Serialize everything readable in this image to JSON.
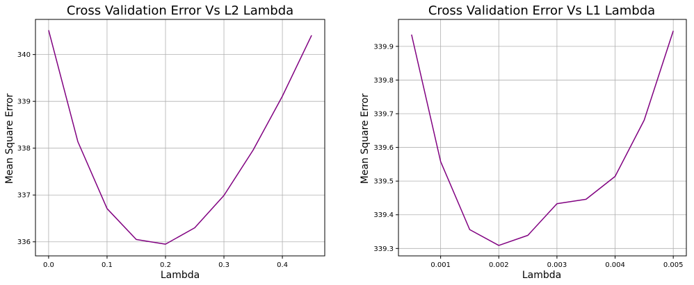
{
  "chart_data": [
    {
      "type": "line",
      "title": "Cross Validation Error Vs L2 Lambda",
      "xlabel": "Lambda",
      "ylabel": "Mean Square Error",
      "grid": true,
      "xlim": [
        -0.0225,
        0.4725
      ],
      "ylim": [
        335.7,
        340.75
      ],
      "xticks": [
        0.0,
        0.1,
        0.2,
        0.3,
        0.4
      ],
      "xtick_labels": [
        "0.0",
        "0.1",
        "0.2",
        "0.3",
        "0.4"
      ],
      "yticks": [
        336,
        337,
        338,
        339,
        340
      ],
      "ytick_labels": [
        "336",
        "337",
        "338",
        "339",
        "340"
      ],
      "color": "#800080",
      "series": [
        {
          "x": [
            0.0,
            0.05,
            0.1,
            0.15,
            0.2,
            0.25,
            0.3,
            0.35,
            0.4,
            0.45
          ],
          "y": [
            340.52,
            338.14,
            336.71,
            336.05,
            335.95,
            336.3,
            336.99,
            337.96,
            339.11,
            340.41
          ]
        }
      ]
    },
    {
      "type": "line",
      "title": "Cross Validation Error Vs L1 Lambda",
      "xlabel": "Lambda",
      "ylabel": "Mean Square Error",
      "grid": true,
      "xlim": [
        0.000275,
        0.005225
      ],
      "ylim": [
        339.278,
        339.98
      ],
      "xticks": [
        0.001,
        0.002,
        0.003,
        0.004,
        0.005
      ],
      "xtick_labels": [
        "0.001",
        "0.002",
        "0.003",
        "0.004",
        "0.005"
      ],
      "yticks": [
        339.3,
        339.4,
        339.5,
        339.6,
        339.7,
        339.8,
        339.9
      ],
      "ytick_labels": [
        "339.3",
        "339.4",
        "339.5",
        "339.6",
        "339.7",
        "339.8",
        "339.9"
      ],
      "color": "#800080",
      "series": [
        {
          "x": [
            0.0005,
            0.001,
            0.0015,
            0.002,
            0.0025,
            0.003,
            0.0035,
            0.004,
            0.0045,
            0.005
          ],
          "y": [
            339.935,
            339.558,
            339.356,
            339.309,
            339.339,
            339.433,
            339.446,
            339.514,
            339.681,
            339.946
          ]
        }
      ]
    }
  ]
}
